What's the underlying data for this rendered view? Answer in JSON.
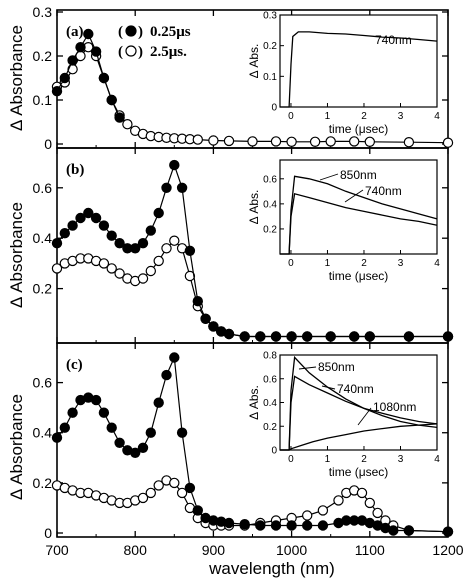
{
  "chart_data": [
    {
      "panel": "main",
      "type": "line",
      "xlabel": "wavelength (nm)",
      "ylabel": "Δ Absorbance",
      "xlim": [
        700,
        1200
      ],
      "x_ticks": [
        "700",
        "800",
        "900",
        "1000",
        "1100",
        "1200"
      ],
      "legend": [
        {
          "marker": "filled",
          "label": "0.25μs"
        },
        {
          "marker": "open",
          "label": "2.5μs."
        }
      ],
      "subplots": [
        {
          "label": "(a)",
          "ylim": [
            0,
            0.3
          ],
          "y_ticks": [
            "0",
            "0.1",
            "0.2",
            "0.3"
          ],
          "series": [
            {
              "marker": "filled",
              "x": [
                700,
                710,
                720,
                730,
                740,
                750,
                760,
                770,
                780
              ],
              "y": [
                0.12,
                0.15,
                0.19,
                0.22,
                0.25,
                0.21,
                0.15,
                0.1,
                0.06
              ]
            },
            {
              "marker": "open",
              "x": [
                700,
                710,
                720,
                730,
                740,
                750,
                760,
                770,
                780,
                790,
                800,
                810,
                820,
                830,
                840,
                850,
                860,
                870,
                880,
                900,
                920,
                950,
                980,
                1000,
                1030,
                1050,
                1080,
                1100,
                1150,
                1200
              ],
              "y": [
                0.13,
                0.14,
                0.17,
                0.2,
                0.22,
                0.2,
                0.15,
                0.1,
                0.065,
                0.045,
                0.03,
                0.023,
                0.018,
                0.016,
                0.014,
                0.013,
                0.012,
                0.011,
                0.01,
                0.008,
                0.007,
                0.006,
                0.006,
                0.005,
                0.005,
                0.006,
                0.006,
                0.005,
                0.004,
                0.003
              ]
            }
          ]
        },
        {
          "label": "(b)",
          "ylim": [
            0,
            0.75
          ],
          "y_ticks": [
            "0.2",
            "0.4",
            "0.6"
          ],
          "series": [
            {
              "marker": "filled",
              "x": [
                700,
                710,
                720,
                730,
                740,
                750,
                760,
                770,
                780,
                790,
                800,
                810,
                820,
                830,
                840,
                850,
                860,
                870,
                880,
                890,
                900,
                910,
                920,
                940,
                960,
                980,
                1000,
                1020,
                1050,
                1080,
                1100,
                1150,
                1200
              ],
              "y": [
                0.38,
                0.42,
                0.45,
                0.48,
                0.5,
                0.48,
                0.45,
                0.41,
                0.38,
                0.36,
                0.36,
                0.38,
                0.43,
                0.5,
                0.6,
                0.69,
                0.6,
                0.35,
                0.15,
                0.08,
                0.05,
                0.03,
                0.02,
                0.01,
                0.01,
                0.01,
                0.01,
                0.01,
                0.01,
                0.01,
                0.01,
                0.01,
                0.01
              ]
            },
            {
              "marker": "open",
              "x": [
                700,
                710,
                720,
                730,
                740,
                750,
                760,
                770,
                780,
                790,
                800,
                810,
                820,
                830,
                840,
                850,
                860,
                870,
                880,
                890,
                900,
                910,
                920,
                940,
                960,
                980,
                1000,
                1020,
                1050,
                1080,
                1100,
                1150,
                1200
              ],
              "y": [
                0.28,
                0.3,
                0.31,
                0.32,
                0.32,
                0.31,
                0.3,
                0.28,
                0.26,
                0.24,
                0.23,
                0.24,
                0.27,
                0.31,
                0.36,
                0.39,
                0.36,
                0.25,
                0.13,
                0.08,
                0.05,
                0.03,
                0.02,
                0.01,
                0.01,
                0.01,
                0.01,
                0.01,
                0.01,
                0.01,
                0.01,
                0.01,
                0.01
              ]
            }
          ]
        },
        {
          "label": "(c)",
          "ylim": [
            0,
            0.75
          ],
          "y_ticks": [
            "0",
            "0.2",
            "0.4",
            "0.6"
          ],
          "series": [
            {
              "marker": "filled",
              "x": [
                700,
                710,
                720,
                730,
                740,
                750,
                760,
                770,
                780,
                790,
                800,
                810,
                820,
                830,
                840,
                850,
                860,
                870,
                880,
                890,
                900,
                910,
                920,
                940,
                960,
                980,
                1000,
                1020,
                1040,
                1060,
                1070,
                1080,
                1090,
                1100,
                1110,
                1120,
                1130,
                1150,
                1200
              ],
              "y": [
                0.38,
                0.42,
                0.48,
                0.53,
                0.54,
                0.53,
                0.48,
                0.42,
                0.36,
                0.33,
                0.32,
                0.34,
                0.4,
                0.52,
                0.63,
                0.7,
                0.4,
                0.18,
                0.09,
                0.06,
                0.05,
                0.045,
                0.04,
                0.035,
                0.03,
                0.03,
                0.03,
                0.03,
                0.03,
                0.04,
                0.05,
                0.05,
                0.05,
                0.04,
                0.03,
                0.02,
                0.01,
                0.01,
                0.005
              ]
            },
            {
              "marker": "open",
              "x": [
                700,
                710,
                720,
                730,
                740,
                750,
                760,
                770,
                780,
                790,
                800,
                810,
                820,
                830,
                840,
                850,
                860,
                870,
                880,
                890,
                900,
                910,
                920,
                940,
                960,
                980,
                1000,
                1020,
                1040,
                1060,
                1070,
                1080,
                1090,
                1100,
                1110,
                1120,
                1130,
                1150,
                1200
              ],
              "y": [
                0.19,
                0.18,
                0.17,
                0.16,
                0.16,
                0.15,
                0.14,
                0.13,
                0.12,
                0.12,
                0.13,
                0.14,
                0.16,
                0.19,
                0.21,
                0.2,
                0.16,
                0.1,
                0.06,
                0.04,
                0.03,
                0.03,
                0.03,
                0.03,
                0.04,
                0.05,
                0.06,
                0.07,
                0.09,
                0.13,
                0.16,
                0.17,
                0.16,
                0.12,
                0.08,
                0.05,
                0.03,
                0.01,
                0.005
              ]
            }
          ]
        }
      ]
    },
    {
      "panel": "inset-a",
      "type": "line",
      "xlabel": "time (μsec)",
      "ylabel": "Δ Abs.",
      "xlim": [
        -0.3,
        4
      ],
      "ylim": [
        0,
        0.3
      ],
      "x_ticks": [
        "0",
        "1",
        "2",
        "3",
        "4"
      ],
      "y_ticks": [
        "0",
        "0.1",
        "0.2",
        "0.3"
      ],
      "annotations": [
        "740nm"
      ],
      "series": [
        {
          "name": "740nm",
          "x": [
            -0.3,
            -0.05,
            0,
            0.05,
            0.2,
            0.5,
            1,
            1.5,
            2,
            2.5,
            3,
            3.5,
            4
          ],
          "y": [
            0,
            0,
            0.14,
            0.23,
            0.245,
            0.245,
            0.24,
            0.238,
            0.233,
            0.228,
            0.225,
            0.22,
            0.215
          ]
        }
      ]
    },
    {
      "panel": "inset-b",
      "type": "line",
      "xlabel": "time (μsec)",
      "ylabel": "Δ Abs.",
      "xlim": [
        -0.3,
        4
      ],
      "ylim": [
        0,
        0.75
      ],
      "x_ticks": [
        "0",
        "1",
        "2",
        "3",
        "4"
      ],
      "y_ticks": [
        "0.2",
        "0.4",
        "0.6"
      ],
      "annotations": [
        "850nm",
        "740nm"
      ],
      "series": [
        {
          "name": "850nm",
          "x": [
            -0.3,
            -0.05,
            0,
            0.1,
            0.5,
            1,
            1.5,
            2,
            2.5,
            3,
            3.5,
            4
          ],
          "y": [
            0,
            0,
            0.35,
            0.62,
            0.6,
            0.56,
            0.5,
            0.45,
            0.4,
            0.36,
            0.32,
            0.28
          ]
        },
        {
          "name": "740nm",
          "x": [
            -0.3,
            -0.05,
            0,
            0.1,
            0.5,
            1,
            1.5,
            2,
            2.5,
            3,
            3.5,
            4
          ],
          "y": [
            0,
            0,
            0.3,
            0.48,
            0.45,
            0.41,
            0.37,
            0.34,
            0.31,
            0.28,
            0.26,
            0.23
          ]
        }
      ]
    },
    {
      "panel": "inset-c",
      "type": "line",
      "xlabel": "time (μsec)",
      "ylabel": "Δ Abs.",
      "xlim": [
        -0.3,
        4
      ],
      "ylim": [
        0,
        0.8
      ],
      "x_ticks": [
        "0",
        "1",
        "2",
        "3",
        "4"
      ],
      "y_ticks": [
        "0",
        "0.2",
        "0.4",
        "0.6",
        "0.8"
      ],
      "annotations": [
        "850nm",
        "740nm",
        "1080nm"
      ],
      "series": [
        {
          "name": "850nm",
          "x": [
            -0.3,
            -0.05,
            0,
            0.1,
            0.5,
            1,
            1.5,
            2,
            2.5,
            3,
            3.5,
            4
          ],
          "y": [
            0,
            0,
            0.5,
            0.78,
            0.65,
            0.53,
            0.43,
            0.35,
            0.29,
            0.24,
            0.21,
            0.19
          ]
        },
        {
          "name": "740nm",
          "x": [
            -0.3,
            -0.05,
            0,
            0.1,
            0.5,
            1,
            1.5,
            2,
            2.5,
            3,
            3.5,
            4
          ],
          "y": [
            0,
            0,
            0.4,
            0.62,
            0.55,
            0.48,
            0.41,
            0.35,
            0.31,
            0.27,
            0.24,
            0.22
          ]
        },
        {
          "name": "1080nm",
          "x": [
            -0.3,
            -0.05,
            0,
            0.3,
            0.6,
            1,
            1.5,
            2,
            2.5,
            3,
            3.5,
            4
          ],
          "y": [
            0,
            0,
            0.01,
            0.04,
            0.07,
            0.1,
            0.13,
            0.16,
            0.18,
            0.2,
            0.21,
            0.22
          ]
        }
      ]
    }
  ]
}
